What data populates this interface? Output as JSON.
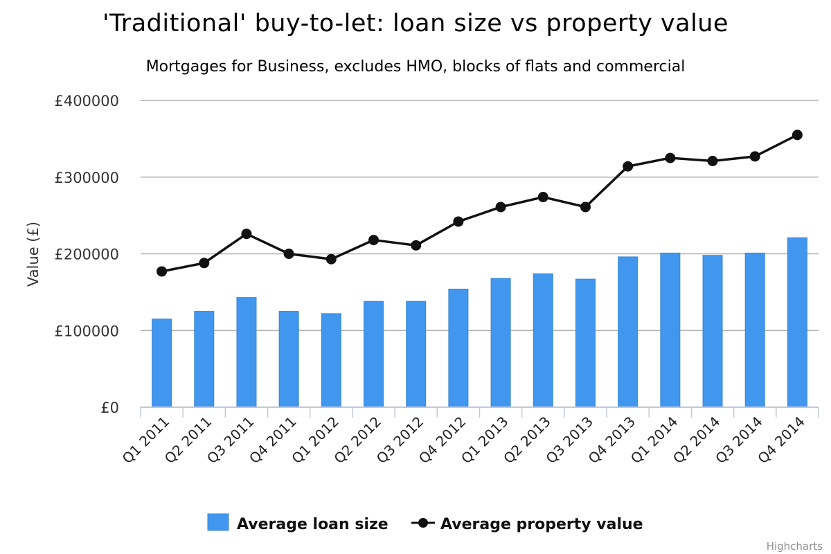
{
  "chart_data": {
    "type": "bar",
    "title": "'Traditional' buy-to-let: loan size vs property value",
    "subtitle": "Mortgages for Business, excludes HMO, blocks of flats and commercial",
    "ylabel": "Value (£)",
    "ylim": [
      0,
      400000
    ],
    "yticks": [
      0,
      100000,
      200000,
      300000,
      400000
    ],
    "ytick_labels": [
      "£0",
      "£100000",
      "£200000",
      "£300000",
      "£400000"
    ],
    "categories": [
      "Q1 2011",
      "Q2 2011",
      "Q3 2011",
      "Q4 2011",
      "Q1 2012",
      "Q2 2012",
      "Q3 2012",
      "Q4 2012",
      "Q1 2013",
      "Q2 2013",
      "Q3 2013",
      "Q4 2013",
      "Q1 2014",
      "Q2 2014",
      "Q3 2014",
      "Q4 2014"
    ],
    "series": [
      {
        "name": "Average loan size",
        "type": "bar",
        "color": "#4196ee",
        "values": [
          115000,
          125000,
          143000,
          125000,
          122000,
          138000,
          138000,
          154000,
          168000,
          174000,
          167000,
          196000,
          201000,
          198000,
          201000,
          221000
        ]
      },
      {
        "name": "Average property value",
        "type": "line",
        "color": "#111111",
        "values": [
          177000,
          188000,
          226000,
          200000,
          193000,
          218000,
          211000,
          242000,
          261000,
          274000,
          261000,
          314000,
          325000,
          321000,
          327000,
          355000
        ]
      }
    ],
    "grid": true,
    "legend": "bottom-center",
    "credits": "Highcharts"
  }
}
